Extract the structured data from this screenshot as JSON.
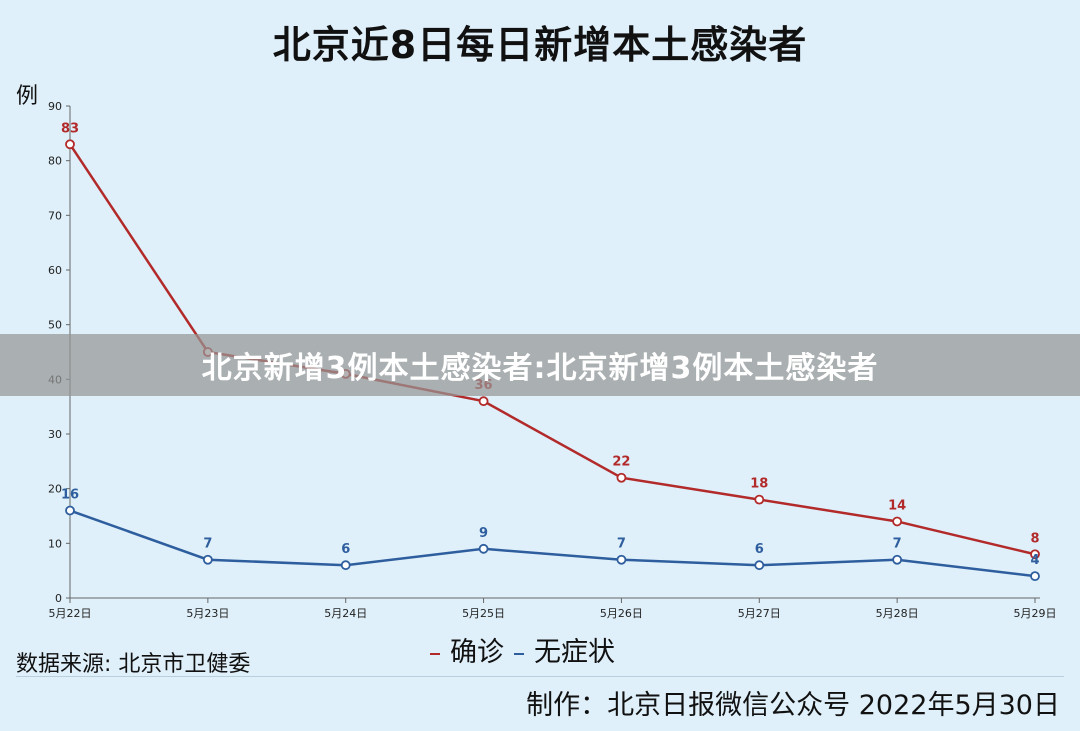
{
  "chart_data": {
    "type": "line",
    "title": "北京近8日每日新增本土感染者",
    "ylabel": "例",
    "ylim": [
      0,
      90
    ],
    "yticks": [
      0,
      10,
      20,
      30,
      40,
      50,
      60,
      70,
      80,
      90
    ],
    "categories": [
      "5月22日",
      "5月23日",
      "5月24日",
      "5月25日",
      "5月26日",
      "5月27日",
      "5月28日",
      "5月29日"
    ],
    "series": [
      {
        "name": "确诊",
        "color": "#b22a2a",
        "values": [
          83,
          45,
          41,
          36,
          22,
          18,
          14,
          8
        ]
      },
      {
        "name": "无症状",
        "color": "#2e5e9e",
        "values": [
          16,
          7,
          6,
          9,
          7,
          6,
          7,
          4
        ]
      }
    ],
    "visible_point_labels": {
      "确诊": [
        "83",
        "",
        "",
        "36",
        "22",
        "18",
        "14",
        "8"
      ],
      "无症状": [
        "16",
        "7",
        "6",
        "9",
        "7",
        "6",
        "7",
        "4"
      ]
    },
    "legend": "bottom-center",
    "grid": false
  },
  "footer": {
    "source": "数据来源: 北京市卫健委",
    "credit": "制作：北京日报微信公众号 2022年5月30日"
  },
  "overlay": {
    "text": "北京新增3例本土感染者:北京新增3例本土感染者"
  }
}
